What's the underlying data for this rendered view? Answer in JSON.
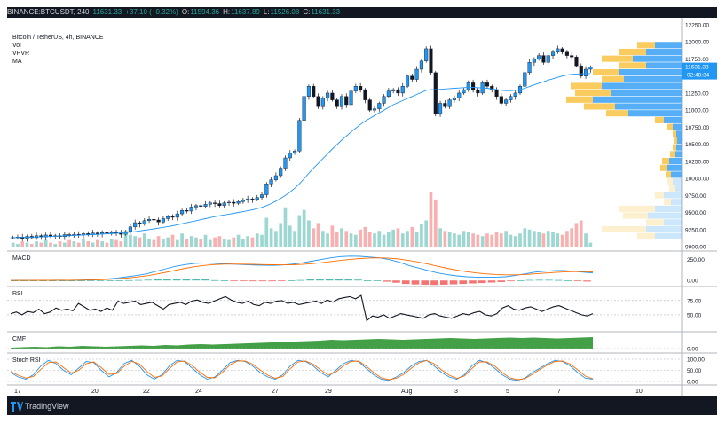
{
  "header": {
    "symbol": "BINANCE:BTCUSDT, 240",
    "last": "11631.33",
    "change": "+37.10 (+0.32%)",
    "open_label": "O:",
    "open": "11594.36",
    "high_label": "H:",
    "high": "11637.89",
    "low_label": "L:",
    "low": "11526.08",
    "close_label": "C:",
    "close": "11631.33"
  },
  "legend": {
    "title": "Bitcoin / TetherUS, 4h, BINANCE",
    "items": [
      "Vol",
      "VPVR",
      "MA"
    ]
  },
  "price_axis": {
    "ticks": [
      "12250.00",
      "12000.00",
      "11750.00",
      "11500.00",
      "11250.00",
      "11000.00",
      "10750.00",
      "10500.00",
      "10250.00",
      "10000.00",
      "9750.00",
      "9500.00",
      "9250.00",
      "9000.00"
    ],
    "last_price": "11631.33",
    "countdown": "02:48:34"
  },
  "panes": {
    "macd": {
      "label": "MACD",
      "ticks": [
        "250.00",
        "0.00"
      ]
    },
    "rsi": {
      "label": "RSI",
      "ticks": [
        "75.00",
        "50.00"
      ]
    },
    "cmf": {
      "label": "CMF",
      "ticks": [
        "0.00"
      ]
    },
    "stoch": {
      "label": "Stoch RSI",
      "ticks": [
        "100.00",
        "50.00",
        "0.00"
      ]
    }
  },
  "time_axis": {
    "labels": [
      "17",
      "20",
      "22",
      "24",
      "27",
      "29",
      "Aug",
      "3",
      "5",
      "7",
      "10"
    ]
  },
  "footer": {
    "brand": "TradingView"
  },
  "colors": {
    "up": "#26a69a",
    "down": "#ef5350",
    "ma": "#2196f3",
    "macd_signal": "#ff6d00",
    "cmf": "#43a047",
    "vpvr_up": "#42a5f5",
    "vpvr_down": "#f9c74f",
    "frame": "#131722"
  },
  "chart_data": [
    {
      "type": "candlestick",
      "title": "Bitcoin / TetherUS, 4h, BINANCE",
      "ylim": [
        9000,
        12250
      ],
      "x_ticks": [
        "17",
        "20",
        "22",
        "24",
        "27",
        "29",
        "Aug",
        "3",
        "5",
        "7",
        "10"
      ],
      "close": [
        9135,
        9140,
        9120,
        9150,
        9130,
        9160,
        9140,
        9170,
        9150,
        9160,
        9145,
        9175,
        9165,
        9180,
        9170,
        9190,
        9175,
        9200,
        9185,
        9205,
        9195,
        9210,
        9200,
        9180,
        9220,
        9290,
        9350,
        9330,
        9380,
        9400,
        9390,
        9360,
        9410,
        9440,
        9430,
        9480,
        9530,
        9520,
        9580,
        9600,
        9590,
        9620,
        9640,
        9630,
        9600,
        9640,
        9650,
        9635,
        9660,
        9680,
        9700,
        9690,
        9720,
        9760,
        9920,
        9980,
        10040,
        10150,
        10300,
        10370,
        10400,
        10850,
        11200,
        11350,
        11200,
        11050,
        11180,
        11250,
        11150,
        11050,
        11200,
        11080,
        11280,
        11350,
        11300,
        11150,
        11000,
        11020,
        11100,
        11200,
        11280,
        11300,
        11250,
        11350,
        11500,
        11450,
        11600,
        11720,
        11900,
        11550,
        10950,
        11100,
        11050,
        11150,
        11180,
        11250,
        11300,
        11400,
        11300,
        11250,
        11400,
        11350,
        11300,
        11200,
        11100,
        11150,
        11200,
        11250,
        11350,
        11550,
        11700,
        11750,
        11800,
        11700,
        11800,
        11850,
        11900,
        11850,
        11800,
        11780,
        11650,
        11500,
        11600,
        11631
      ],
      "open_series_note": "",
      "ma": [
        9130,
        9132,
        9134,
        9136,
        9138,
        9140,
        9142,
        9145,
        9148,
        9150,
        9153,
        9156,
        9160,
        9163,
        9166,
        9170,
        9173,
        9176,
        9180,
        9183,
        9186,
        9190,
        9195,
        9200,
        9206,
        9212,
        9220,
        9230,
        9240,
        9250,
        9260,
        9270,
        9282,
        9294,
        9306,
        9320,
        9335,
        9350,
        9365,
        9380,
        9395,
        9410,
        9425,
        9440,
        9452,
        9464,
        9476,
        9488,
        9500,
        9512,
        9525,
        9540,
        9556,
        9575,
        9600,
        9630,
        9665,
        9705,
        9750,
        9800,
        9855,
        9920,
        9995,
        10075,
        10150,
        10220,
        10290,
        10360,
        10430,
        10495,
        10560,
        10620,
        10680,
        10735,
        10790,
        10840,
        10880,
        10920,
        10960,
        11000,
        11040,
        11080,
        11110,
        11140,
        11170,
        11200,
        11230,
        11260,
        11290,
        11300,
        11300,
        11305,
        11310,
        11315,
        11320,
        11325,
        11330,
        11335,
        11335,
        11330,
        11325,
        11320,
        11310,
        11300,
        11290,
        11285,
        11285,
        11290,
        11300,
        11320,
        11345,
        11370,
        11395,
        11415,
        11440,
        11460,
        11480,
        11500,
        11515,
        11525,
        11530,
        11532,
        11535,
        11538
      ]
    },
    {
      "type": "bar",
      "title": "Vol",
      "values": [
        3,
        2,
        4,
        3,
        2,
        4,
        3,
        5,
        3,
        2,
        4,
        3,
        5,
        4,
        3,
        6,
        4,
        3,
        5,
        4,
        3,
        6,
        5,
        4,
        12,
        9,
        8,
        7,
        10,
        6,
        5,
        8,
        6,
        7,
        9,
        5,
        10,
        6,
        8,
        7,
        6,
        9,
        5,
        7,
        8,
        6,
        5,
        7,
        9,
        6,
        8,
        7,
        10,
        9,
        22,
        14,
        12,
        18,
        30,
        16,
        12,
        24,
        28,
        20,
        14,
        18,
        12,
        10,
        16,
        11,
        14,
        12,
        10,
        9,
        13,
        15,
        11,
        10,
        12,
        9,
        11,
        13,
        14,
        10,
        12,
        15,
        11,
        17,
        20,
        42,
        36,
        14,
        12,
        11,
        10,
        9,
        12,
        11,
        10,
        9,
        8,
        10,
        9,
        11,
        10,
        12,
        9,
        8,
        10,
        14,
        13,
        12,
        11,
        10,
        12,
        11,
        10,
        9,
        12,
        14,
        18,
        20,
        10,
        3
      ]
    },
    {
      "type": "line",
      "title": "MACD",
      "series": [
        {
          "values": [
            0,
            2,
            1,
            3,
            2,
            4,
            3,
            5,
            8,
            12,
            18,
            30,
            45,
            60,
            80,
            110,
            140,
            170,
            190,
            205,
            210,
            205,
            200,
            195,
            190,
            185,
            182,
            180,
            185,
            195,
            210,
            230,
            250,
            270,
            285,
            290,
            288,
            280,
            270,
            250,
            220,
            180,
            150,
            120,
            90,
            70,
            55,
            45,
            40,
            38,
            40,
            45,
            60,
            80,
            100,
            110,
            118,
            120,
            110,
            100,
            90
          ]
        },
        {
          "values": [
            0,
            1,
            1,
            2,
            2,
            3,
            3,
            4,
            6,
            9,
            13,
            20,
            30,
            42,
            56,
            75,
            98,
            122,
            145,
            165,
            180,
            190,
            195,
            196,
            195,
            193,
            190,
            188,
            187,
            188,
            192,
            200,
            212,
            226,
            240,
            252,
            262,
            268,
            270,
            266,
            256,
            240,
            220,
            196,
            170,
            145,
            123,
            105,
            90,
            80,
            72,
            68,
            68,
            72,
            80,
            88,
            96,
            102,
            106,
            106,
            103
          ]
        }
      ],
      "ticks": [
        "250.00",
        "0.00"
      ]
    },
    {
      "type": "line",
      "title": "RSI",
      "ticks": [
        "75.00",
        "50.00"
      ],
      "values": [
        52,
        55,
        50,
        56,
        54,
        60,
        52,
        55,
        62,
        58,
        60,
        57,
        70,
        64,
        58,
        60,
        56,
        62,
        58,
        74,
        70,
        72,
        74,
        68,
        70,
        72,
        66,
        60,
        68,
        70,
        72,
        68,
        74,
        76,
        72,
        70,
        74,
        78,
        82,
        76,
        72,
        70,
        74,
        68,
        66,
        72,
        70,
        74,
        75,
        70,
        72,
        68,
        70,
        72,
        74,
        70,
        76,
        72,
        78,
        80,
        82,
        78,
        84,
        40,
        48,
        46,
        50,
        44,
        48,
        52,
        50,
        48,
        46,
        44,
        50,
        52,
        48,
        46,
        44,
        48,
        52,
        50,
        54,
        56,
        50,
        48,
        52,
        62,
        66,
        60,
        58,
        62,
        64,
        60,
        56,
        60,
        64,
        66,
        62,
        58,
        54,
        50,
        48,
        52
      ]
    },
    {
      "type": "area",
      "title": "CMF",
      "ticks": [
        "0.00"
      ],
      "values": [
        0.02,
        0.03,
        0.04,
        0.03,
        0.05,
        0.04,
        0.06,
        0.05,
        0.04,
        0.05,
        0.06,
        0.07,
        0.06,
        0.08,
        0.07,
        0.09,
        0.1,
        0.09,
        0.1,
        0.11,
        0.12,
        0.13,
        0.14,
        0.15,
        0.16,
        0.17,
        0.18,
        0.2,
        0.19,
        0.2,
        0.21,
        0.22,
        0.21,
        0.2,
        0.21,
        0.22,
        0.23,
        0.24,
        0.23,
        0.22,
        0.23,
        0.24,
        0.25,
        0.24,
        0.25,
        0.24,
        0.23,
        0.24,
        0.25,
        0.26
      ]
    },
    {
      "type": "line",
      "title": "Stoch RSI",
      "ticks": [
        "100.00",
        "50.00",
        "0.00"
      ],
      "series": [
        {
          "values": [
            40,
            20,
            10,
            30,
            70,
            95,
            80,
            50,
            30,
            60,
            90,
            85,
            50,
            20,
            40,
            80,
            95,
            70,
            30,
            10,
            30,
            70,
            95,
            90,
            60,
            30,
            10,
            20,
            50,
            85,
            95,
            90,
            70,
            40,
            20,
            10,
            30,
            70,
            95,
            90,
            70,
            40,
            20,
            50,
            80,
            95,
            90,
            60,
            30,
            10,
            5,
            20,
            40,
            70,
            90,
            95,
            70,
            40,
            20,
            10,
            30,
            70,
            95,
            85,
            60,
            30,
            10,
            5,
            15,
            40,
            60,
            80,
            95,
            90,
            70,
            40,
            15,
            10
          ]
        },
        {
          "values": [
            45,
            28,
            15,
            22,
            55,
            85,
            88,
            62,
            38,
            50,
            80,
            88,
            62,
            32,
            35,
            68,
            90,
            80,
            45,
            18,
            24,
            58,
            88,
            92,
            72,
            42,
            18,
            16,
            40,
            75,
            92,
            92,
            78,
            52,
            28,
            14,
            22,
            58,
            88,
            92,
            78,
            52,
            28,
            42,
            70,
            90,
            92,
            70,
            40,
            16,
            8,
            14,
            32,
            60,
            84,
            94,
            80,
            52,
            28,
            14,
            24,
            58,
            88,
            88,
            70,
            40,
            16,
            8,
            12,
            32,
            54,
            74,
            90,
            92,
            78,
            52,
            24,
            12
          ]
        }
      ]
    }
  ]
}
